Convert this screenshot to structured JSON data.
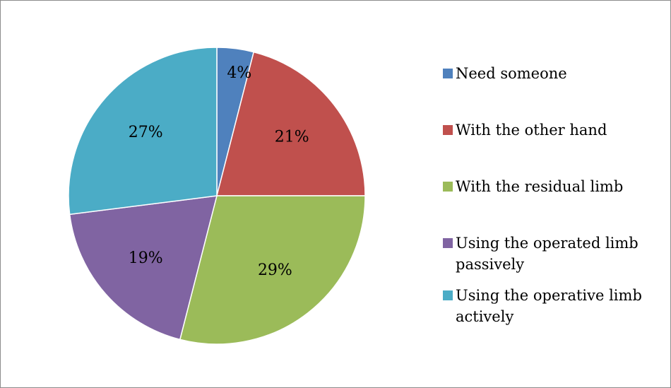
{
  "chart_data": {
    "type": "pie",
    "title": "",
    "legend_position": "right",
    "slices": [
      {
        "name": "Need someone",
        "value": 4,
        "label": "4%",
        "color": "#4f81bd"
      },
      {
        "name": "With the other hand",
        "value": 21,
        "label": "21%",
        "color": "#c0504d"
      },
      {
        "name": "With the residual limb",
        "value": 29,
        "label": "29%",
        "color": "#9bbb59"
      },
      {
        "name": "Using  the operated limb passively",
        "value": 19,
        "label": "19%",
        "color": "#8064a2"
      },
      {
        "name": "Using  the operative limb actively",
        "value": 27,
        "label": "27%",
        "color": "#4bacc6"
      }
    ]
  }
}
